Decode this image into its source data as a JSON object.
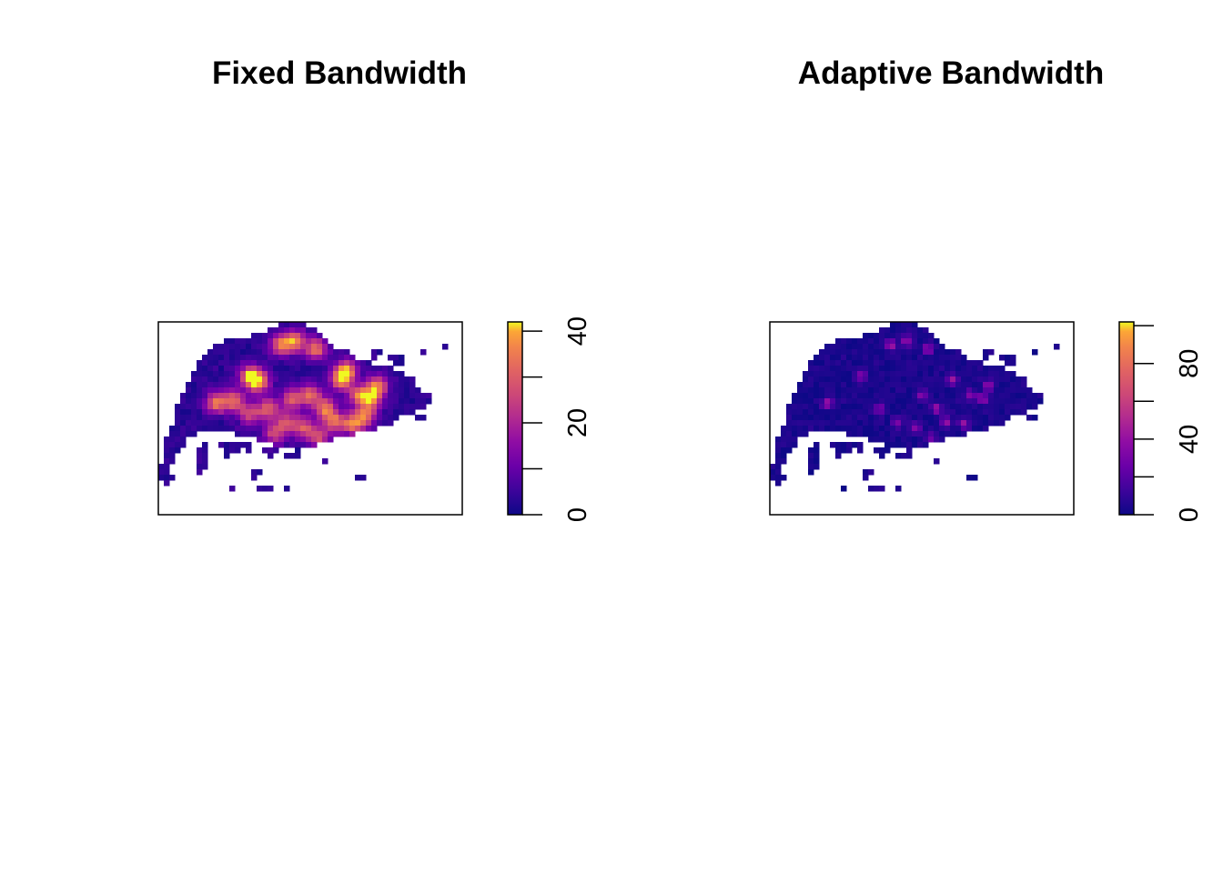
{
  "chart_data": [
    {
      "type": "heatmap",
      "title": "Fixed Bandwidth",
      "colorbar": {
        "palette": "plasma",
        "range": [
          0,
          42
        ],
        "ticks": [
          0,
          10,
          20,
          30,
          40
        ],
        "labeled_ticks": [
          0,
          20,
          40
        ],
        "tick_labels": [
          "0",
          "20",
          "40"
        ]
      },
      "map": {
        "region": "Singapore",
        "intensity_scale": 0.85,
        "frame": true,
        "axes_shown": false
      },
      "hotspots": [
        {
          "x": 0.4,
          "y": 0.12,
          "value": 28
        },
        {
          "x": 0.45,
          "y": 0.1,
          "value": 32
        },
        {
          "x": 0.52,
          "y": 0.14,
          "value": 30
        },
        {
          "x": 0.3,
          "y": 0.28,
          "value": 30
        },
        {
          "x": 0.33,
          "y": 0.31,
          "value": 34
        },
        {
          "x": 0.19,
          "y": 0.42,
          "value": 30
        },
        {
          "x": 0.25,
          "y": 0.41,
          "value": 28
        },
        {
          "x": 0.36,
          "y": 0.45,
          "value": 26
        },
        {
          "x": 0.44,
          "y": 0.4,
          "value": 25
        },
        {
          "x": 0.5,
          "y": 0.38,
          "value": 28
        },
        {
          "x": 0.55,
          "y": 0.45,
          "value": 30
        },
        {
          "x": 0.6,
          "y": 0.3,
          "value": 32
        },
        {
          "x": 0.62,
          "y": 0.25,
          "value": 30
        },
        {
          "x": 0.66,
          "y": 0.38,
          "value": 26
        },
        {
          "x": 0.7,
          "y": 0.4,
          "value": 28
        },
        {
          "x": 0.72,
          "y": 0.33,
          "value": 30
        },
        {
          "x": 0.58,
          "y": 0.52,
          "value": 26
        },
        {
          "x": 0.64,
          "y": 0.53,
          "value": 28
        },
        {
          "x": 0.68,
          "y": 0.49,
          "value": 27
        },
        {
          "x": 0.42,
          "y": 0.52,
          "value": 24
        },
        {
          "x": 0.48,
          "y": 0.55,
          "value": 25
        },
        {
          "x": 0.53,
          "y": 0.6,
          "value": 22
        },
        {
          "x": 0.38,
          "y": 0.58,
          "value": 22
        },
        {
          "x": 0.3,
          "y": 0.48,
          "value": 22
        }
      ]
    },
    {
      "type": "heatmap",
      "title": "Adaptive Bandwidth",
      "colorbar": {
        "palette": "plasma",
        "range": [
          0,
          102
        ],
        "ticks": [
          0,
          20,
          40,
          60,
          80,
          100
        ],
        "labeled_ticks": [
          0,
          40,
          80
        ],
        "tick_labels": [
          "0",
          "40",
          "80"
        ]
      },
      "map": {
        "region": "Singapore",
        "intensity_scale": 0.4,
        "frame": true,
        "axes_shown": false
      },
      "hotspots": [
        {
          "x": 0.4,
          "y": 0.12,
          "value": 45
        },
        {
          "x": 0.45,
          "y": 0.1,
          "value": 40
        },
        {
          "x": 0.52,
          "y": 0.14,
          "value": 38
        },
        {
          "x": 0.3,
          "y": 0.28,
          "value": 35
        },
        {
          "x": 0.19,
          "y": 0.42,
          "value": 40
        },
        {
          "x": 0.36,
          "y": 0.45,
          "value": 30
        },
        {
          "x": 0.5,
          "y": 0.38,
          "value": 35
        },
        {
          "x": 0.55,
          "y": 0.45,
          "value": 42
        },
        {
          "x": 0.6,
          "y": 0.3,
          "value": 40
        },
        {
          "x": 0.66,
          "y": 0.38,
          "value": 34
        },
        {
          "x": 0.7,
          "y": 0.4,
          "value": 38
        },
        {
          "x": 0.72,
          "y": 0.33,
          "value": 36
        },
        {
          "x": 0.58,
          "y": 0.52,
          "value": 35
        },
        {
          "x": 0.64,
          "y": 0.53,
          "value": 40
        },
        {
          "x": 0.42,
          "y": 0.52,
          "value": 30
        },
        {
          "x": 0.48,
          "y": 0.55,
          "value": 32
        },
        {
          "x": 0.53,
          "y": 0.6,
          "value": 28
        }
      ]
    }
  ]
}
